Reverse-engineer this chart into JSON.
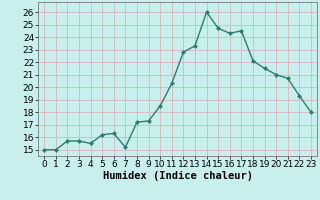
{
  "x": [
    0,
    1,
    2,
    3,
    4,
    5,
    6,
    7,
    8,
    9,
    10,
    11,
    12,
    13,
    14,
    15,
    16,
    17,
    18,
    19,
    20,
    21,
    22,
    23
  ],
  "y": [
    15,
    15,
    15.7,
    15.7,
    15.5,
    16.2,
    16.3,
    15.2,
    17.2,
    17.3,
    18.5,
    20.3,
    22.8,
    23.3,
    26.0,
    24.7,
    24.3,
    24.5,
    22.1,
    21.5,
    21.0,
    20.7,
    19.3,
    18.0
  ],
  "line_color": "#2e7d6e",
  "marker": "D",
  "marker_size": 2.0,
  "line_width": 1.0,
  "bg_color": "#c8eeee",
  "grid_color": "#d4b8b8",
  "xlabel": "Humidex (Indice chaleur)",
  "xlabel_fontsize": 7.5,
  "tick_fontsize": 6.5,
  "ylim": [
    14.5,
    26.8
  ],
  "xlim": [
    -0.5,
    23.5
  ],
  "yticks": [
    15,
    16,
    17,
    18,
    19,
    20,
    21,
    22,
    23,
    24,
    25,
    26
  ],
  "xticks": [
    0,
    1,
    2,
    3,
    4,
    5,
    6,
    7,
    8,
    9,
    10,
    11,
    12,
    13,
    14,
    15,
    16,
    17,
    18,
    19,
    20,
    21,
    22,
    23
  ]
}
